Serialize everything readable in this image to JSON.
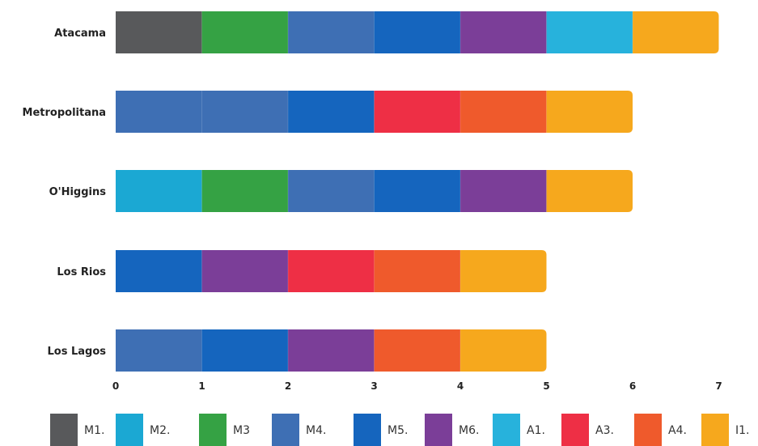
{
  "chart_data": {
    "type": "bar",
    "orientation": "horizontal",
    "stacked": true,
    "unit_segments": true,
    "categories": [
      "Atacama",
      "Metropolitana",
      "O'Higgins",
      "Los Rios",
      "Los Lagos"
    ],
    "segments": [
      [
        "M1.",
        "M3",
        "M4.",
        "M5.",
        "M6.",
        "A1.",
        "I1."
      ],
      [
        "M4.",
        "M4.",
        "M5.",
        "A3.",
        "A4.",
        "I1."
      ],
      [
        "M2.",
        "M3",
        "M4.",
        "M5.",
        "M6.",
        "I1."
      ],
      [
        "M5.",
        "M6.",
        "A3.",
        "A4.",
        "I1."
      ],
      [
        "M4.",
        "M5.",
        "M6.",
        "A4.",
        "I1."
      ]
    ],
    "totals": [
      7,
      6,
      6,
      5,
      5
    ],
    "xlim": [
      0,
      7
    ],
    "xticks": [
      "0",
      "1",
      "2",
      "3",
      "4",
      "5",
      "6",
      "7"
    ],
    "grid": false,
    "legend_position": "bottom",
    "legend": [
      {
        "label": "M1.",
        "color": "#58595b"
      },
      {
        "label": "M2.",
        "color": "#1ba8d3"
      },
      {
        "label": "M3",
        "color": "#35a244"
      },
      {
        "label": "M4.",
        "color": "#3e6fb4"
      },
      {
        "label": "M5.",
        "color": "#1565be"
      },
      {
        "label": "M6.",
        "color": "#7b3e98"
      },
      {
        "label": "A1.",
        "color": "#27b2dc"
      },
      {
        "label": "A3.",
        "color": "#ee2f45"
      },
      {
        "label": "A4.",
        "color": "#ef5a2c"
      },
      {
        "label": "I1.",
        "color": "#f6a81d"
      }
    ]
  }
}
